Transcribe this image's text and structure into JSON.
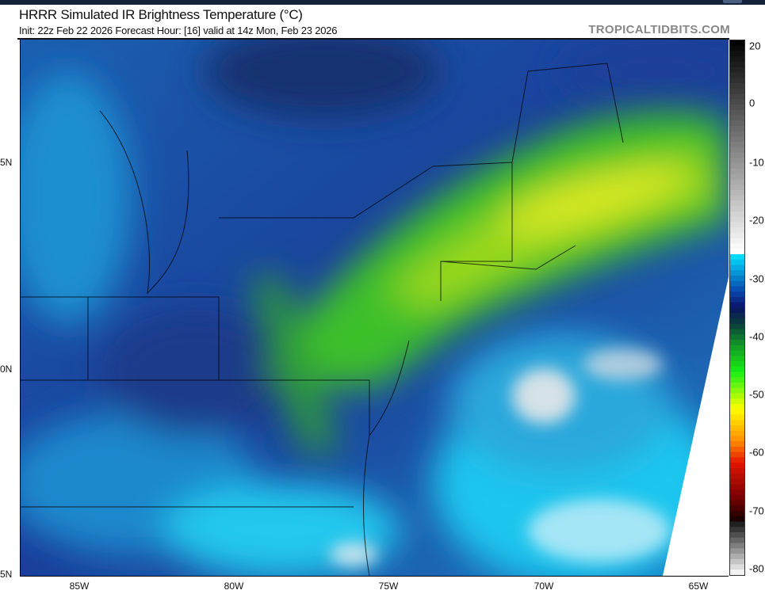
{
  "header": {
    "title": "HRRR Simulated IR Brightness Temperature (°C)",
    "subtitle": "Init: 22z Feb 22 2026   Forecast Hour: [16]   valid at 14z Mon, Feb 23 2026",
    "brand": "TROPICALTIDBITS.COM"
  },
  "map": {
    "lat_labels": [
      "5N",
      "0N",
      "5N"
    ],
    "lon_labels": [
      "85W",
      "80W",
      "75W",
      "70W",
      "65W"
    ]
  },
  "colorbar": {
    "labels": [
      "20",
      "0",
      "-10",
      "-20",
      "-30",
      "-40",
      "-50",
      "-60",
      "-70",
      "-80"
    ],
    "range": [
      -80,
      20
    ],
    "unit": "°C",
    "colors": {
      "warm_gray_top": "#000000",
      "warm_gray_bottom": "#ffffff",
      "cyan": "#00e5ff",
      "dark_blue": "#0a1a6e",
      "green": "#11dd11",
      "yellow": "#ffff00",
      "orange": "#ff8c00",
      "red": "#e00000",
      "dark_red": "#500000"
    }
  }
}
